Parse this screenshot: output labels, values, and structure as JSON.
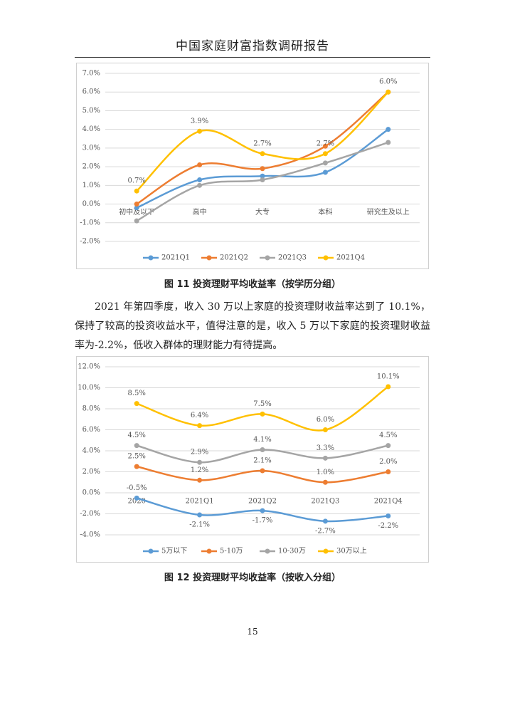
{
  "header": {
    "title": "中国家庭财富指数调研报告"
  },
  "chart_data": [
    {
      "type": "line",
      "categories": [
        "初中及以下",
        "高中",
        "大专",
        "本科",
        "研究生及以上"
      ],
      "ylim": [
        -2,
        7
      ],
      "yticks": [
        {
          "value": -2,
          "label": "-2.0%"
        },
        {
          "value": -1,
          "label": "-1.0%"
        },
        {
          "value": 0,
          "label": "0.0%"
        },
        {
          "value": 1,
          "label": "1.0%"
        },
        {
          "value": 2,
          "label": "2.0%"
        },
        {
          "value": 3,
          "label": "3.0%"
        },
        {
          "value": 4,
          "label": "4.0%"
        },
        {
          "value": 5,
          "label": "5.0%"
        },
        {
          "value": 6,
          "label": "6.0%"
        },
        {
          "value": 7,
          "label": "7.0%"
        }
      ],
      "grid": true,
      "series": [
        {
          "name": "2021Q1",
          "color": "#5b9bd5",
          "values": [
            -0.2,
            1.3,
            1.5,
            1.7,
            4.0
          ]
        },
        {
          "name": "2021Q2",
          "color": "#ed7d31",
          "values": [
            0.0,
            2.1,
            1.9,
            3.1,
            6.0
          ]
        },
        {
          "name": "2021Q3",
          "color": "#a5a5a5",
          "values": [
            -0.9,
            1.0,
            1.3,
            2.2,
            3.3
          ]
        },
        {
          "name": "2021Q4",
          "color": "#ffc000",
          "values": [
            0.7,
            3.9,
            2.7,
            2.7,
            6.0
          ],
          "value_labels": [
            "0.7%",
            "3.9%",
            "2.7%",
            "2.7%",
            "6.0%"
          ]
        }
      ]
    },
    {
      "type": "line",
      "categories": [
        "2020",
        "2021Q1",
        "2021Q2",
        "2021Q3",
        "2021Q4"
      ],
      "ylim": [
        -4,
        12
      ],
      "yticks": [
        {
          "value": -4,
          "label": "-4.0%"
        },
        {
          "value": -2,
          "label": "-2.0%"
        },
        {
          "value": 0,
          "label": "0.0%"
        },
        {
          "value": 2,
          "label": "2.0%"
        },
        {
          "value": 4,
          "label": "4.0%"
        },
        {
          "value": 6,
          "label": "6.0%"
        },
        {
          "value": 8,
          "label": "8.0%"
        },
        {
          "value": 10,
          "label": "10.0%"
        },
        {
          "value": 12,
          "label": "12.0%"
        }
      ],
      "grid": true,
      "series": [
        {
          "name": "5万以下",
          "color": "#5b9bd5",
          "values": [
            -0.5,
            -2.1,
            -1.7,
            -2.7,
            -2.2
          ],
          "value_labels": [
            "-0.5%",
            "-2.1%",
            "-1.7%",
            "-2.7%",
            "-2.2%"
          ]
        },
        {
          "name": "5-10万",
          "color": "#ed7d31",
          "values": [
            2.5,
            1.2,
            2.1,
            1.0,
            2.0
          ],
          "value_labels": [
            "2.5%",
            "1.2%",
            "2.1%",
            "1.0%",
            "2.0%"
          ]
        },
        {
          "name": "10-30万",
          "color": "#a5a5a5",
          "values": [
            4.5,
            2.9,
            4.1,
            3.3,
            4.5
          ],
          "value_labels": [
            "4.5%",
            "2.9%",
            "4.1%",
            "3.3%",
            "4.5%"
          ]
        },
        {
          "name": "30万以上",
          "color": "#ffc000",
          "values": [
            8.5,
            6.4,
            7.5,
            6.0,
            10.1
          ],
          "value_labels": [
            "8.5%",
            "6.4%",
            "7.5%",
            "6.0%",
            "10.1%"
          ]
        }
      ]
    }
  ],
  "captions": [
    "图 11 投资理财平均收益率（按学历分组）",
    "图 12 投资理财平均收益率（按收入分组）"
  ],
  "paragraph": "2021 年第四季度，收入 30 万以上家庭的投资理财收益率达到了 10.1%，保持了较高的投资收益水平，值得注意的是，收入 5 万以下家庭的投资理财收益率为-2.2%，低收入群体的理财能力有待提高。",
  "page_number": "15"
}
